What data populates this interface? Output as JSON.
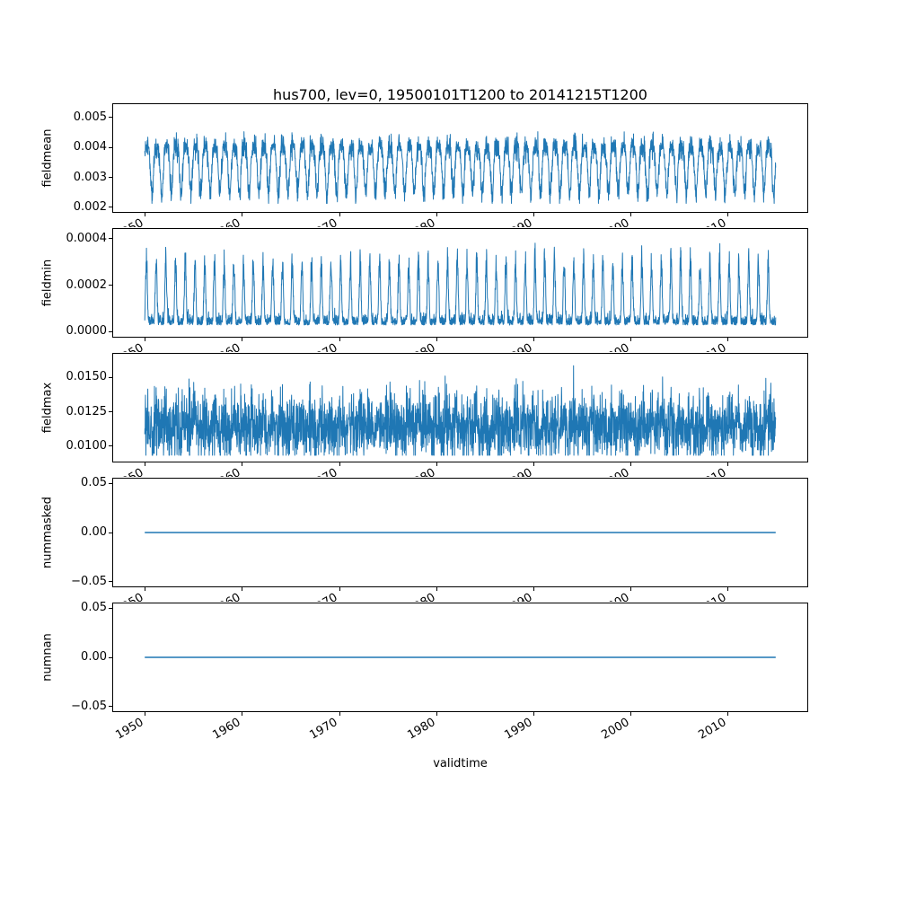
{
  "figure": {
    "title": "hus700, lev=0, 19500101T1200 to 20141215T1200",
    "xlabel": "validtime",
    "background": "#ffffff",
    "line_color": "#1f77b4"
  },
  "xaxis": {
    "label": "validtime",
    "xlim": [
      1946.75,
      2018.21
    ],
    "data_start": 1950.0,
    "data_end": 2014.96,
    "n_points": 3250,
    "seed": 11,
    "ticks": [
      {
        "value": 1950,
        "label": "1950"
      },
      {
        "value": 1960,
        "label": "1960"
      },
      {
        "value": 1970,
        "label": "1970"
      },
      {
        "value": 1980,
        "label": "1980"
      },
      {
        "value": 1990,
        "label": "1990"
      },
      {
        "value": 2000,
        "label": "2000"
      },
      {
        "value": 2010,
        "label": "2010"
      }
    ]
  },
  "chart_data": [
    {
      "type": "line",
      "ylabel": "fieldmean",
      "ylim": [
        0.001845,
        0.005445
      ],
      "yticks": [
        0.002,
        0.003,
        0.004,
        0.005
      ],
      "ytick_labels": [
        "0.002",
        "0.003",
        "0.004",
        "0.005"
      ],
      "summary": "Annual seasonal oscillation of mean hus700 between about 0.0022 and 0.0052 from 1950 to 2014",
      "generator": {
        "kind": "seasonal_wave",
        "base": 0.00347,
        "amp1": 0.00078,
        "amp2": 0.00024,
        "phase2": 1.5,
        "noise": 0.00019,
        "clip": [
          0.00213,
          0.00528
        ]
      }
    },
    {
      "type": "line",
      "ylabel": "fieldmin",
      "ylim": [
        -2.25e-05,
        0.0004425
      ],
      "yticks": [
        0.0,
        0.0002,
        0.0004
      ],
      "ytick_labels": [
        "0.0000",
        "0.0002",
        "0.0004"
      ],
      "summary": "Field minimum hugging zero (about 0.00002-0.0001) with annual spikes reaching about 0.0004",
      "generator": {
        "kind": "spikes",
        "base": 2.8e-05,
        "base_noise": 2.2e-05,
        "spike_phase": 0.45,
        "sharpness": 3,
        "spike_amp": 0.00019,
        "spike_rand": 0.00013,
        "clip": [
          4e-06,
          0.000415
        ]
      }
    },
    {
      "type": "line",
      "ylabel": "fieldmax",
      "ylim": [
        0.00889,
        0.01672
      ],
      "yticks": [
        0.01,
        0.0125,
        0.015
      ],
      "ytick_labels": [
        "0.0100",
        "0.0125",
        "0.0150"
      ],
      "summary": "Field maximum as a noisy band around 0.0105-0.0135 with excursions up to about 0.016",
      "generator": {
        "kind": "noise_band",
        "base": 0.01145,
        "season_amp": 0.00045,
        "season_phase": 0.7,
        "noise": 0.00115,
        "spike_prob": 0.012,
        "spike_amp": 0.002,
        "clip": [
          0.00935,
          0.0163
        ]
      }
    },
    {
      "type": "line",
      "ylabel": "nummasked",
      "ylim": [
        -0.055,
        0.055
      ],
      "yticks": [
        -0.05,
        0.0,
        0.05
      ],
      "ytick_labels": [
        "−0.05",
        "0.00",
        "0.05"
      ],
      "summary": "Number of masked points: constant zero over the whole period",
      "generator": {
        "kind": "constant",
        "value": 0.0
      }
    },
    {
      "type": "line",
      "ylabel": "numnan",
      "ylim": [
        -0.055,
        0.055
      ],
      "yticks": [
        -0.05,
        0.0,
        0.05
      ],
      "ytick_labels": [
        "−0.05",
        "0.00",
        "0.05"
      ],
      "summary": "Number of NaN points: constant zero over the whole period",
      "generator": {
        "kind": "constant",
        "value": 0.0
      }
    }
  ]
}
